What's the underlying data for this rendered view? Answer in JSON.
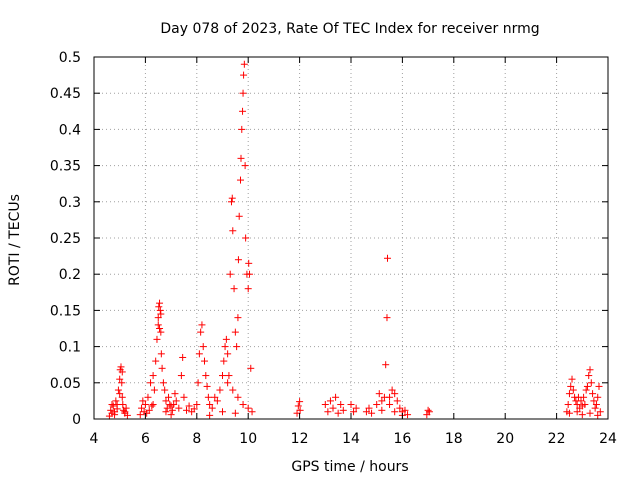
{
  "chart_data": {
    "type": "scatter",
    "title": "Day 078 of 2023, Rate Of TEC Index for receiver nrmg",
    "xlabel": "GPS time / hours",
    "ylabel": "ROTI / TECUs",
    "xlim": [
      4,
      24
    ],
    "ylim": [
      0,
      0.5
    ],
    "grid": true,
    "legend": "none",
    "marker": "+",
    "color": "#ff0000",
    "xticks": [
      4,
      6,
      8,
      10,
      12,
      14,
      16,
      18,
      20,
      22,
      24
    ],
    "xtick_labels": [
      "4",
      "6",
      "8",
      "10",
      "12",
      "14",
      "16",
      "18",
      "20",
      "22",
      "24"
    ],
    "yticks": [
      0,
      0.05,
      0.1,
      0.15,
      0.2,
      0.25,
      0.3,
      0.35,
      0.4,
      0.45,
      0.5
    ],
    "ytick_labels": [
      "0",
      "0.05",
      "0.1",
      "0.15",
      "0.2",
      "0.25",
      "0.3",
      "0.35",
      "0.4",
      "0.45",
      "0.5"
    ],
    "points": [
      [
        4.6,
        0.004
      ],
      [
        4.65,
        0.012
      ],
      [
        4.7,
        0.008
      ],
      [
        4.75,
        0.018
      ],
      [
        4.8,
        0.006
      ],
      [
        4.85,
        0.025
      ],
      [
        4.9,
        0.014
      ],
      [
        4.95,
        0.04
      ],
      [
        5.0,
        0.055
      ],
      [
        5.02,
        0.068
      ],
      [
        5.05,
        0.072
      ],
      [
        5.08,
        0.05
      ],
      [
        5.1,
        0.03
      ],
      [
        5.12,
        0.02
      ],
      [
        5.15,
        0.012
      ],
      [
        5.2,
        0.008
      ],
      [
        5.25,
        0.015
      ],
      [
        5.3,
        0.005
      ],
      [
        4.7,
        0.02
      ],
      [
        4.8,
        0.01
      ],
      [
        5.0,
        0.035
      ],
      [
        5.1,
        0.065
      ],
      [
        4.9,
        0.02
      ],
      [
        5.2,
        0.01
      ],
      [
        5.8,
        0.006
      ],
      [
        5.85,
        0.015
      ],
      [
        5.9,
        0.025
      ],
      [
        5.95,
        0.01
      ],
      [
        6.0,
        0.02
      ],
      [
        6.05,
        0.008
      ],
      [
        6.1,
        0.03
      ],
      [
        6.15,
        0.012
      ],
      [
        6.2,
        0.05
      ],
      [
        6.25,
        0.018
      ],
      [
        6.3,
        0.06
      ],
      [
        6.35,
        0.04
      ],
      [
        6.4,
        0.08
      ],
      [
        6.45,
        0.11
      ],
      [
        6.5,
        0.13
      ],
      [
        6.52,
        0.155
      ],
      [
        6.55,
        0.16
      ],
      [
        6.58,
        0.15
      ],
      [
        6.6,
        0.12
      ],
      [
        6.62,
        0.09
      ],
      [
        6.65,
        0.07
      ],
      [
        6.7,
        0.05
      ],
      [
        6.75,
        0.04
      ],
      [
        6.8,
        0.025
      ],
      [
        6.85,
        0.015
      ],
      [
        6.9,
        0.03
      ],
      [
        6.95,
        0.02
      ],
      [
        7.0,
        0.018
      ],
      [
        7.05,
        0.012
      ],
      [
        7.1,
        0.02
      ],
      [
        7.15,
        0.035
      ],
      [
        7.2,
        0.025
      ],
      [
        7.3,
        0.015
      ],
      [
        7.4,
        0.06
      ],
      [
        7.45,
        0.085
      ],
      [
        7.5,
        0.03
      ],
      [
        7.6,
        0.012
      ],
      [
        7.7,
        0.018
      ],
      [
        7.8,
        0.01
      ],
      [
        7.9,
        0.014
      ],
      [
        6.5,
        0.14
      ],
      [
        6.55,
        0.125
      ],
      [
        6.6,
        0.145
      ],
      [
        6.3,
        0.02
      ],
      [
        6.8,
        0.01
      ],
      [
        7.0,
        0.006
      ],
      [
        8.0,
        0.02
      ],
      [
        8.05,
        0.05
      ],
      [
        8.1,
        0.09
      ],
      [
        8.15,
        0.12
      ],
      [
        8.2,
        0.13
      ],
      [
        8.25,
        0.1
      ],
      [
        8.3,
        0.08
      ],
      [
        8.35,
        0.06
      ],
      [
        8.4,
        0.045
      ],
      [
        8.45,
        0.03
      ],
      [
        8.5,
        0.02
      ],
      [
        8.6,
        0.015
      ],
      [
        8.7,
        0.03
      ],
      [
        8.8,
        0.025
      ],
      [
        8.9,
        0.04
      ],
      [
        9.0,
        0.06
      ],
      [
        9.05,
        0.08
      ],
      [
        9.1,
        0.1
      ],
      [
        9.15,
        0.11
      ],
      [
        9.2,
        0.09
      ],
      [
        9.25,
        0.06
      ],
      [
        9.3,
        0.2
      ],
      [
        9.35,
        0.3
      ],
      [
        9.38,
        0.305
      ],
      [
        9.4,
        0.26
      ],
      [
        9.45,
        0.18
      ],
      [
        9.5,
        0.12
      ],
      [
        9.55,
        0.1
      ],
      [
        9.6,
        0.14
      ],
      [
        9.62,
        0.22
      ],
      [
        9.65,
        0.28
      ],
      [
        9.7,
        0.33
      ],
      [
        9.72,
        0.36
      ],
      [
        9.75,
        0.4
      ],
      [
        9.78,
        0.425
      ],
      [
        9.8,
        0.45
      ],
      [
        9.82,
        0.475
      ],
      [
        9.85,
        0.49
      ],
      [
        9.88,
        0.35
      ],
      [
        9.9,
        0.25
      ],
      [
        9.95,
        0.2
      ],
      [
        10.0,
        0.18
      ],
      [
        10.02,
        0.215
      ],
      [
        10.05,
        0.2
      ],
      [
        10.1,
        0.07
      ],
      [
        10.15,
        0.01
      ],
      [
        9.2,
        0.05
      ],
      [
        9.4,
        0.04
      ],
      [
        9.6,
        0.03
      ],
      [
        9.8,
        0.02
      ],
      [
        10.0,
        0.015
      ],
      [
        8.5,
        0.005
      ],
      [
        9.0,
        0.01
      ],
      [
        9.5,
        0.008
      ],
      [
        11.9,
        0.008
      ],
      [
        11.95,
        0.018
      ],
      [
        12.0,
        0.024
      ],
      [
        12.02,
        0.012
      ],
      [
        13.0,
        0.02
      ],
      [
        13.1,
        0.01
      ],
      [
        13.2,
        0.025
      ],
      [
        13.3,
        0.015
      ],
      [
        13.4,
        0.03
      ],
      [
        13.5,
        0.008
      ],
      [
        13.6,
        0.02
      ],
      [
        13.7,
        0.012
      ],
      [
        14.0,
        0.02
      ],
      [
        14.1,
        0.01
      ],
      [
        14.2,
        0.015
      ],
      [
        14.6,
        0.01
      ],
      [
        14.7,
        0.015
      ],
      [
        14.8,
        0.008
      ],
      [
        15.0,
        0.02
      ],
      [
        15.1,
        0.035
      ],
      [
        15.2,
        0.025
      ],
      [
        15.3,
        0.03
      ],
      [
        15.35,
        0.075
      ],
      [
        15.4,
        0.14
      ],
      [
        15.42,
        0.222
      ],
      [
        15.5,
        0.03
      ],
      [
        15.6,
        0.04
      ],
      [
        15.7,
        0.035
      ],
      [
        15.8,
        0.025
      ],
      [
        15.9,
        0.015
      ],
      [
        16.0,
        0.01
      ],
      [
        16.1,
        0.012
      ],
      [
        16.2,
        0.006
      ],
      [
        15.2,
        0.012
      ],
      [
        15.5,
        0.02
      ],
      [
        15.7,
        0.01
      ],
      [
        16.0,
        0.005
      ],
      [
        16.95,
        0.006
      ],
      [
        17.0,
        0.012
      ],
      [
        17.05,
        0.01
      ],
      [
        22.4,
        0.01
      ],
      [
        22.45,
        0.02
      ],
      [
        22.5,
        0.035
      ],
      [
        22.55,
        0.045
      ],
      [
        22.6,
        0.055
      ],
      [
        22.65,
        0.04
      ],
      [
        22.7,
        0.03
      ],
      [
        22.75,
        0.025
      ],
      [
        22.8,
        0.02
      ],
      [
        22.85,
        0.03
      ],
      [
        22.9,
        0.015
      ],
      [
        22.95,
        0.025
      ],
      [
        23.0,
        0.018
      ],
      [
        23.05,
        0.03
      ],
      [
        23.1,
        0.02
      ],
      [
        23.15,
        0.04
      ],
      [
        23.2,
        0.045
      ],
      [
        23.25,
        0.06
      ],
      [
        23.3,
        0.068
      ],
      [
        23.35,
        0.05
      ],
      [
        23.4,
        0.035
      ],
      [
        23.45,
        0.025
      ],
      [
        23.5,
        0.015
      ],
      [
        23.55,
        0.02
      ],
      [
        23.6,
        0.03
      ],
      [
        23.65,
        0.045
      ],
      [
        23.7,
        0.01
      ],
      [
        22.5,
        0.008
      ],
      [
        22.8,
        0.01
      ],
      [
        23.0,
        0.006
      ],
      [
        23.3,
        0.008
      ],
      [
        23.6,
        0.005
      ]
    ]
  }
}
